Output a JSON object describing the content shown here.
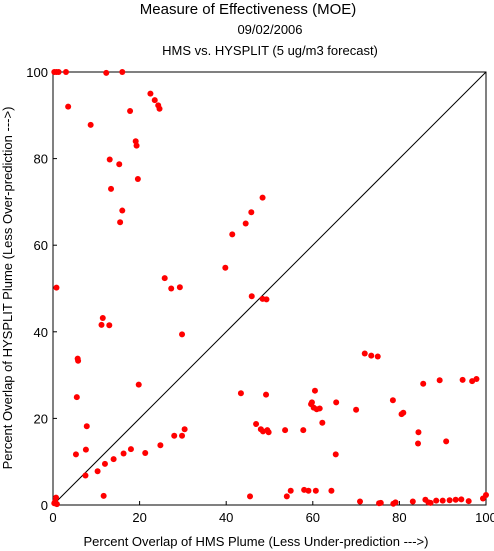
{
  "chart_data": {
    "type": "scatter",
    "title": "Measure of Effectiveness (MOE)",
    "date": "09/02/2006",
    "subtitle": "HMS vs. HYSPLIT  (5 ug/m3 forecast)",
    "xlabel": "Percent Overlap of HMS Plume (Less Under-prediction --->)",
    "ylabel": "Percent Overlap of HYSPLIT Plume (Less Over-prediction --->)",
    "xlim": [
      0,
      100
    ],
    "ylim": [
      0,
      100
    ],
    "xticks": [
      "0",
      "20",
      "40",
      "60",
      "80",
      "100"
    ],
    "yticks": [
      "0",
      "20",
      "40",
      "60",
      "80",
      "100"
    ],
    "grid": false,
    "reference_line": "y = x",
    "marker_color": "#ff0000",
    "points": [
      [
        0.3,
        100
      ],
      [
        0.8,
        100
      ],
      [
        1.3,
        100
      ],
      [
        3.0,
        100
      ],
      [
        12.3,
        99.8
      ],
      [
        16.0,
        100
      ],
      [
        3.5,
        92.0
      ],
      [
        8.7,
        87.8
      ],
      [
        17.8,
        91.0
      ],
      [
        22.5,
        95.0
      ],
      [
        23.5,
        93.5
      ],
      [
        24.3,
        92.3
      ],
      [
        24.6,
        91.5
      ],
      [
        19.1,
        84.0
      ],
      [
        19.3,
        83.0
      ],
      [
        13.1,
        79.8
      ],
      [
        15.3,
        78.7
      ],
      [
        19.6,
        75.3
      ],
      [
        13.4,
        73.0
      ],
      [
        16.0,
        68.0
      ],
      [
        15.5,
        65.3
      ],
      [
        0.8,
        50.2
      ],
      [
        11.5,
        43.2
      ],
      [
        11.2,
        41.6
      ],
      [
        13.0,
        41.5
      ],
      [
        5.7,
        33.8
      ],
      [
        5.8,
        33.3
      ],
      [
        5.5,
        24.9
      ],
      [
        7.8,
        18.2
      ],
      [
        19.8,
        27.8
      ],
      [
        7.6,
        12.8
      ],
      [
        5.3,
        11.7
      ],
      [
        7.5,
        6.8
      ],
      [
        10.3,
        7.8
      ],
      [
        12.0,
        9.5
      ],
      [
        14.0,
        10.6
      ],
      [
        16.3,
        11.9
      ],
      [
        18.0,
        12.9
      ],
      [
        21.3,
        12.0
      ],
      [
        24.8,
        13.8
      ],
      [
        28.0,
        16.0
      ],
      [
        29.8,
        16.0
      ],
      [
        30.4,
        17.5
      ],
      [
        11.7,
        2.1
      ],
      [
        0.5,
        0.8
      ],
      [
        0.7,
        1.7
      ],
      [
        0.9,
        0.2
      ],
      [
        0.3,
        0.4
      ],
      [
        25.8,
        52.4
      ],
      [
        27.3,
        50.0
      ],
      [
        29.3,
        50.3
      ],
      [
        29.8,
        39.4
      ],
      [
        39.8,
        54.8
      ],
      [
        41.4,
        62.5
      ],
      [
        44.5,
        65.0
      ],
      [
        45.8,
        67.6
      ],
      [
        48.4,
        71.0
      ],
      [
        45.9,
        48.2
      ],
      [
        48.4,
        47.6
      ],
      [
        49.3,
        47.5
      ],
      [
        43.4,
        25.8
      ],
      [
        46.9,
        18.7
      ],
      [
        49.2,
        25.5
      ],
      [
        48.0,
        17.5
      ],
      [
        49.5,
        17.3
      ],
      [
        48.5,
        17.0
      ],
      [
        49.8,
        16.8
      ],
      [
        53.6,
        17.3
      ],
      [
        45.5,
        2.0
      ],
      [
        54.0,
        2.0
      ],
      [
        54.9,
        3.3
      ],
      [
        57.8,
        17.3
      ],
      [
        58.0,
        3.5
      ],
      [
        59.0,
        3.3
      ],
      [
        60.7,
        3.3
      ],
      [
        60.5,
        26.4
      ],
      [
        59.6,
        23.3
      ],
      [
        60.2,
        22.5
      ],
      [
        60.9,
        22.1
      ],
      [
        61.6,
        22.3
      ],
      [
        62.2,
        19.0
      ],
      [
        59.8,
        23.7
      ],
      [
        64.3,
        3.3
      ],
      [
        65.3,
        11.7
      ],
      [
        65.4,
        23.7
      ],
      [
        70.0,
        22.0
      ],
      [
        70.9,
        0.8
      ],
      [
        72.0,
        35.0
      ],
      [
        73.5,
        34.5
      ],
      [
        75.0,
        34.3
      ],
      [
        75.3,
        0.4
      ],
      [
        75.7,
        0.5
      ],
      [
        78.5,
        24.2
      ],
      [
        78.6,
        0.3
      ],
      [
        79.1,
        0.6
      ],
      [
        80.5,
        21.0
      ],
      [
        80.9,
        21.3
      ],
      [
        83.1,
        0.8
      ],
      [
        84.4,
        16.8
      ],
      [
        84.3,
        14.2
      ],
      [
        85.5,
        28.0
      ],
      [
        86.0,
        1.2
      ],
      [
        86.7,
        0.6
      ],
      [
        87.2,
        0.5
      ],
      [
        88.5,
        1.0
      ],
      [
        89.3,
        28.8
      ],
      [
        90.0,
        1.0
      ],
      [
        90.8,
        14.7
      ],
      [
        91.6,
        1.1
      ],
      [
        93.0,
        1.2
      ],
      [
        94.3,
        1.3
      ],
      [
        94.6,
        28.9
      ],
      [
        96.0,
        0.9
      ],
      [
        96.8,
        28.6
      ],
      [
        97.8,
        29.1
      ],
      [
        99.3,
        1.5
      ],
      [
        100,
        2.3
      ]
    ]
  }
}
